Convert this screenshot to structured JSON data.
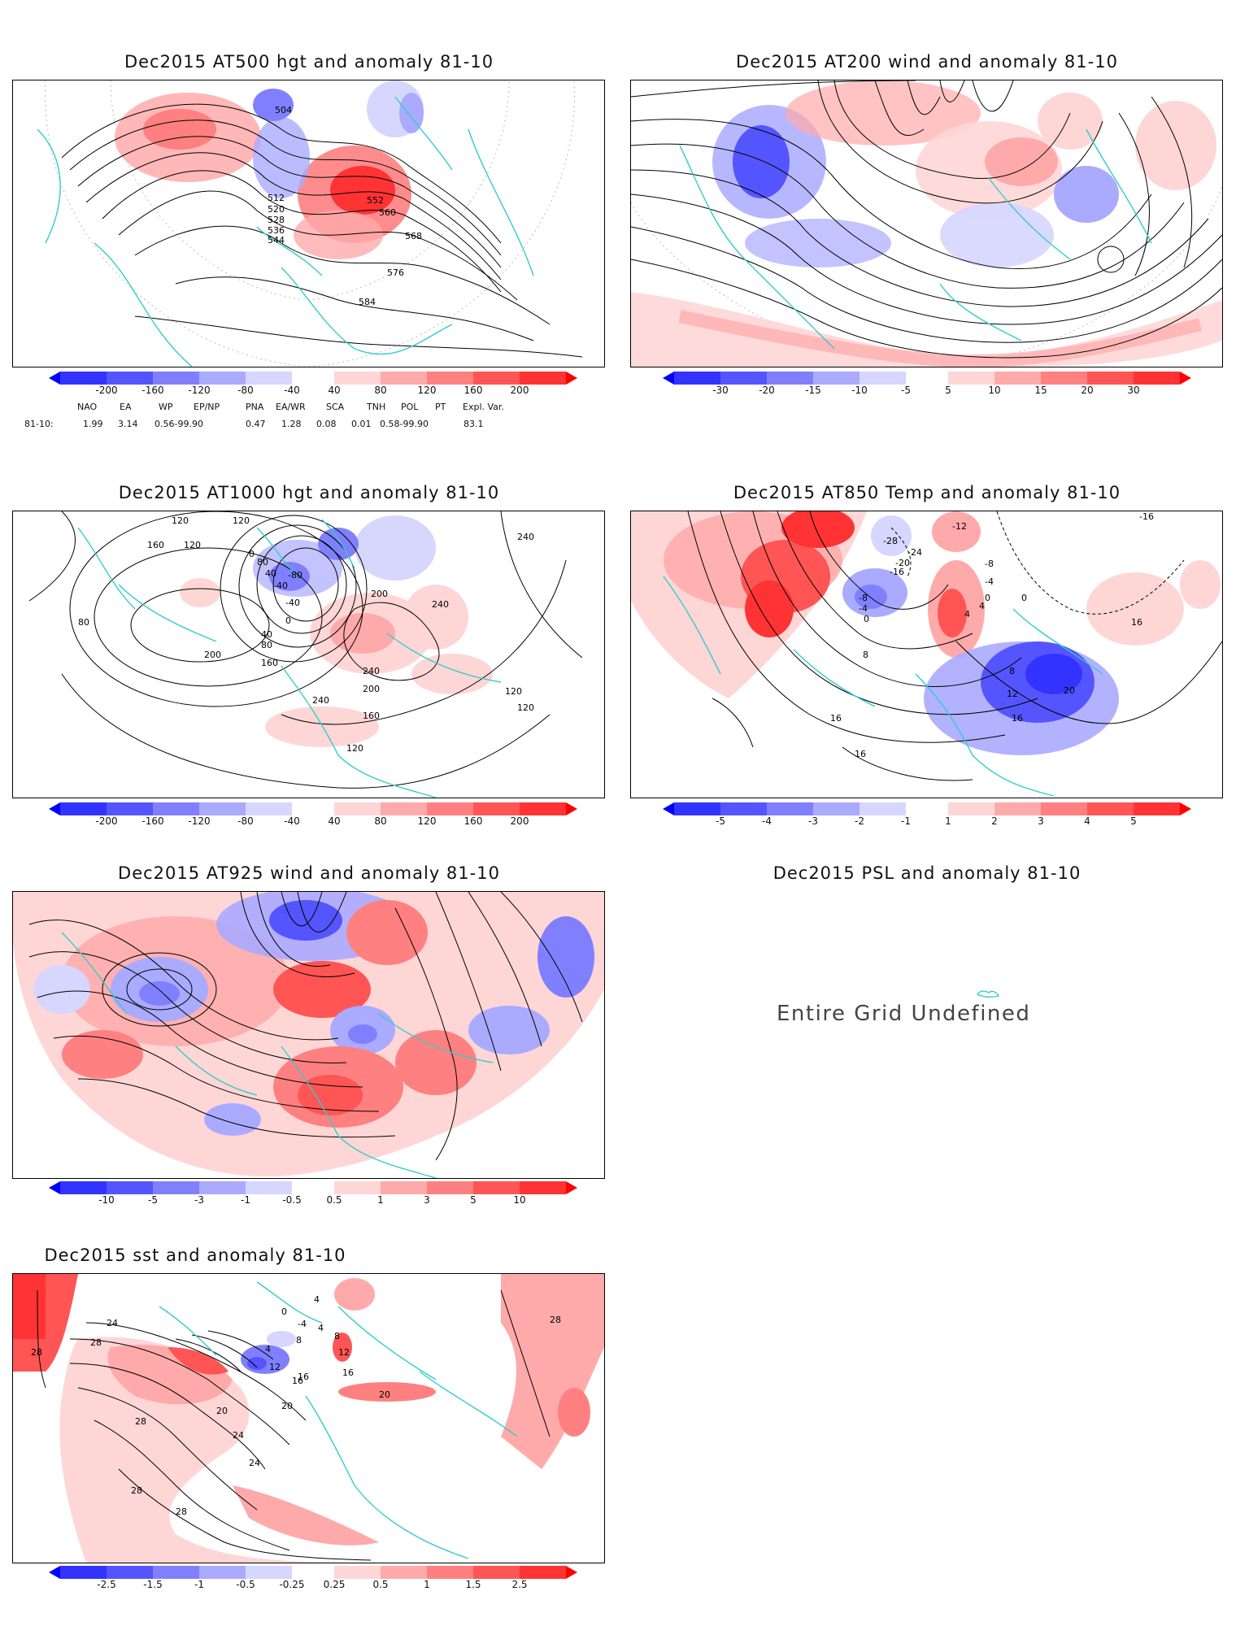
{
  "panels": [
    {
      "id": "p500",
      "title": "Dec2015 AT500 hgt and anomaly 81-10",
      "ticks": [
        "-200",
        "-160",
        "-120",
        "-80",
        "-40",
        "40",
        "80",
        "120",
        "160",
        "200"
      ],
      "contour_labels": [
        "504",
        "512",
        "520",
        "528",
        "536",
        "544",
        "552",
        "560",
        "568",
        "576",
        "584"
      ]
    },
    {
      "id": "p200",
      "title": "Dec2015 AT200 wind and anomaly 81-10",
      "ticks": [
        "-30",
        "-20",
        "-15",
        "-10",
        "-5",
        "5",
        "10",
        "15",
        "20",
        "30"
      ],
      "contour_labels": []
    },
    {
      "id": "p1000",
      "title": "Dec2015 AT1000 hgt and anomaly 81-10",
      "ticks": [
        "-200",
        "-160",
        "-120",
        "-80",
        "-40",
        "40",
        "80",
        "120",
        "160",
        "200"
      ],
      "contour_labels": [
        "120",
        "120",
        "160",
        "120",
        "80",
        "240",
        "200",
        "240",
        "200",
        "-40",
        "0",
        "40",
        "80",
        "160",
        "240",
        "240",
        "200",
        "160",
        "120",
        "120",
        "120",
        "80",
        "40",
        "-80",
        "-40",
        "0"
      ]
    },
    {
      "id": "p850",
      "title": "Dec2015 AT850 Temp and anomaly 81-10",
      "ticks": [
        "-5",
        "-4",
        "-3",
        "-2",
        "-1",
        "1",
        "2",
        "3",
        "4",
        "5"
      ],
      "contour_labels": [
        "-16",
        "-12",
        "-24",
        "-20",
        "-16",
        "-8",
        "-4",
        "0",
        "-8",
        "-4",
        "0",
        "8",
        "4",
        "16",
        "8",
        "12",
        "16",
        "20",
        "16",
        "16",
        "0",
        "4",
        "-28"
      ]
    },
    {
      "id": "p925",
      "title": "Dec2015 AT925 wind and anomaly 81-10",
      "ticks": [
        "-10",
        "-5",
        "-3",
        "-1",
        "-0.5",
        "0.5",
        "1",
        "3",
        "5",
        "10"
      ],
      "contour_labels": []
    },
    {
      "id": "psl",
      "title": "Dec2015 PSL and anomaly 81-10",
      "message": "Entire Grid Undefined"
    },
    {
      "id": "sst",
      "title": "Dec2015 sst and anomaly 81-10",
      "ticks": [
        "-2.5",
        "-1.5",
        "-1",
        "-0.5",
        "-0.25",
        "0.25",
        "0.5",
        "1",
        "1.5",
        "2.5"
      ],
      "contour_labels": [
        "28",
        "28",
        "24",
        "28",
        "20",
        "16",
        "12",
        "8",
        "4",
        "0",
        "-4",
        "4",
        "12",
        "16",
        "20",
        "24",
        "28",
        "28",
        "24",
        "20",
        "16",
        "8",
        "4",
        "28"
      ]
    }
  ],
  "teleconnection": {
    "headers": [
      "NAO",
      "EA",
      "WP",
      "EP/NP",
      "PNA",
      "EA/WR",
      "SCA",
      "TNH",
      "POL",
      "PT",
      "Expl. Var."
    ],
    "row_label": "81-10:",
    "values": [
      "1.99",
      "3.14",
      "0.56-99.90",
      "0.47",
      "1.28",
      "0.08",
      "0.01",
      "0.58-99.90",
      "83.1"
    ]
  },
  "colors": {
    "blue_scale": [
      "#3333ff",
      "#5555ff",
      "#8080ff",
      "#aaaaff",
      "#d6d6ff"
    ],
    "red_scale": [
      "#ffd6d6",
      "#ffaaaa",
      "#ff8080",
      "#ff5555",
      "#ff3333"
    ],
    "contour": "#000000",
    "coast": "#33cccc",
    "grid": "#aaaaaa"
  }
}
